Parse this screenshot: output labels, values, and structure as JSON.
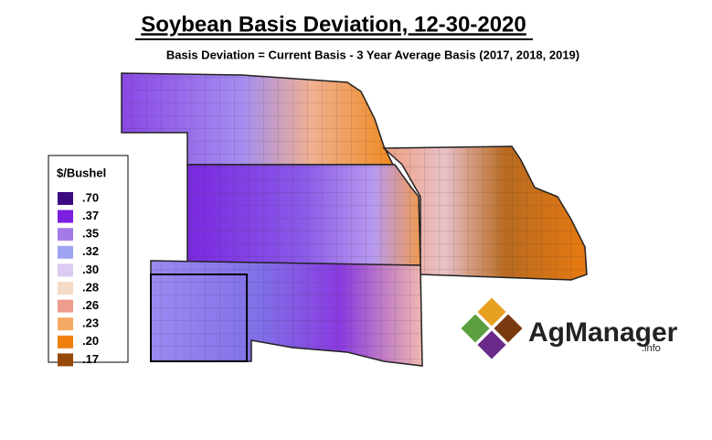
{
  "header": {
    "title": "Soybean Basis Deviation, 12-30-2020",
    "subtitle": "Basis Deviation = Current Basis - 3 Year Average Basis (2017, 2018, 2019)"
  },
  "legend": {
    "title": "$/Bushel",
    "items": [
      {
        "label": ".70",
        "color": "#3b0a80"
      },
      {
        "label": ".37",
        "color": "#7a1ee0"
      },
      {
        "label": ".35",
        "color": "#a57ae8"
      },
      {
        "label": ".32",
        "color": "#9ea4f2"
      },
      {
        "label": ".30",
        "color": "#dccaf2"
      },
      {
        "label": ".28",
        "color": "#f6dac8"
      },
      {
        "label": ".26",
        "color": "#ee9c8c"
      },
      {
        "label": ".23",
        "color": "#f4aa62"
      },
      {
        "label": ".20",
        "color": "#ef8010"
      },
      {
        "label": ".17",
        "color": "#94480a"
      }
    ]
  },
  "logo": {
    "name": "AgManager",
    "suffix": ".info"
  }
}
